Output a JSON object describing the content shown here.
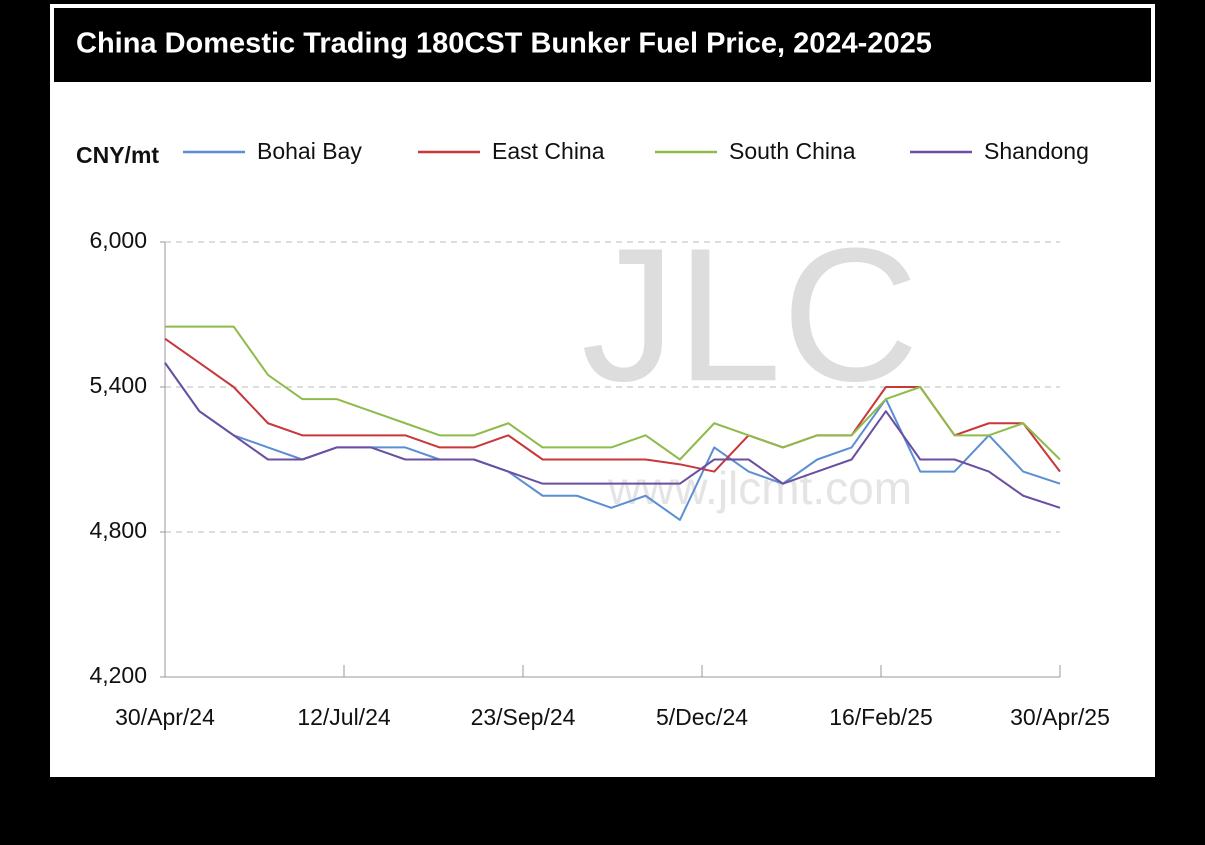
{
  "chart_data": {
    "type": "line",
    "title": "China Domestic Trading 180CST Bunker Fuel Price, 2024-2025",
    "y_label": "CNY/mt",
    "watermark": {
      "logo": "JLC",
      "url": "www.jlcmt.com"
    },
    "x": [
      "2024-04-30",
      "2024-05-14",
      "2024-05-28",
      "2024-06-11",
      "2024-06-25",
      "2024-07-09",
      "2024-07-23",
      "2024-08-06",
      "2024-08-20",
      "2024-09-03",
      "2024-09-17",
      "2024-10-01",
      "2024-10-15",
      "2024-10-29",
      "2024-11-12",
      "2024-11-26",
      "2024-12-10",
      "2024-12-24",
      "2025-01-07",
      "2025-01-21",
      "2025-02-04",
      "2025-02-18",
      "2025-03-04",
      "2025-03-18",
      "2025-04-01",
      "2025-04-15",
      "2025-04-30"
    ],
    "series": [
      {
        "name": "Bohai Bay",
        "color": "#5b8fd1",
        "values": [
          5500,
          5300,
          5200,
          5150,
          5100,
          5150,
          5150,
          5150,
          5100,
          5100,
          5050,
          4950,
          4950,
          4900,
          4950,
          4850,
          5150,
          5050,
          5000,
          5100,
          5150,
          5350,
          5050,
          5050,
          5200,
          5050,
          5000
        ]
      },
      {
        "name": "East China",
        "color": "#c8373a",
        "values": [
          5600,
          5500,
          5400,
          5250,
          5200,
          5200,
          5200,
          5200,
          5150,
          5150,
          5200,
          5100,
          5100,
          5100,
          5100,
          5080,
          5050,
          5200,
          5150,
          5200,
          5200,
          5400,
          5400,
          5200,
          5250,
          5250,
          5050
        ]
      },
      {
        "name": "South China",
        "color": "#8fbb4a",
        "values": [
          5650,
          5650,
          5650,
          5450,
          5350,
          5350,
          5300,
          5250,
          5200,
          5200,
          5250,
          5150,
          5150,
          5150,
          5200,
          5100,
          5250,
          5200,
          5150,
          5200,
          5200,
          5350,
          5400,
          5200,
          5200,
          5250,
          5100
        ]
      },
      {
        "name": "Shandong",
        "color": "#6b4fa0",
        "values": [
          5500,
          5300,
          5200,
          5100,
          5100,
          5150,
          5150,
          5100,
          5100,
          5100,
          5050,
          5000,
          5000,
          5000,
          5000,
          5000,
          5100,
          5100,
          5000,
          5050,
          5100,
          5300,
          5100,
          5100,
          5050,
          4950,
          4900
        ]
      }
    ],
    "xlim": [
      "2024-04-30",
      "2025-04-30"
    ],
    "xticks": [
      {
        "value": "2024-04-30",
        "label": "30/Apr/24"
      },
      {
        "value": "2024-07-12",
        "label": "12/Jul/24"
      },
      {
        "value": "2024-09-23",
        "label": "23/Sep/24"
      },
      {
        "value": "2024-12-05",
        "label": "5/Dec/24"
      },
      {
        "value": "2025-02-16",
        "label": "16/Feb/25"
      },
      {
        "value": "2025-04-30",
        "label": "30/Apr/25"
      }
    ],
    "ylim": [
      4200,
      6000
    ],
    "yticks": [
      {
        "value": 4200,
        "label": "4,200"
      },
      {
        "value": 4800,
        "label": "4,800"
      },
      {
        "value": 5400,
        "label": "5,400"
      },
      {
        "value": 6000,
        "label": "6,000"
      }
    ],
    "grid": true
  }
}
